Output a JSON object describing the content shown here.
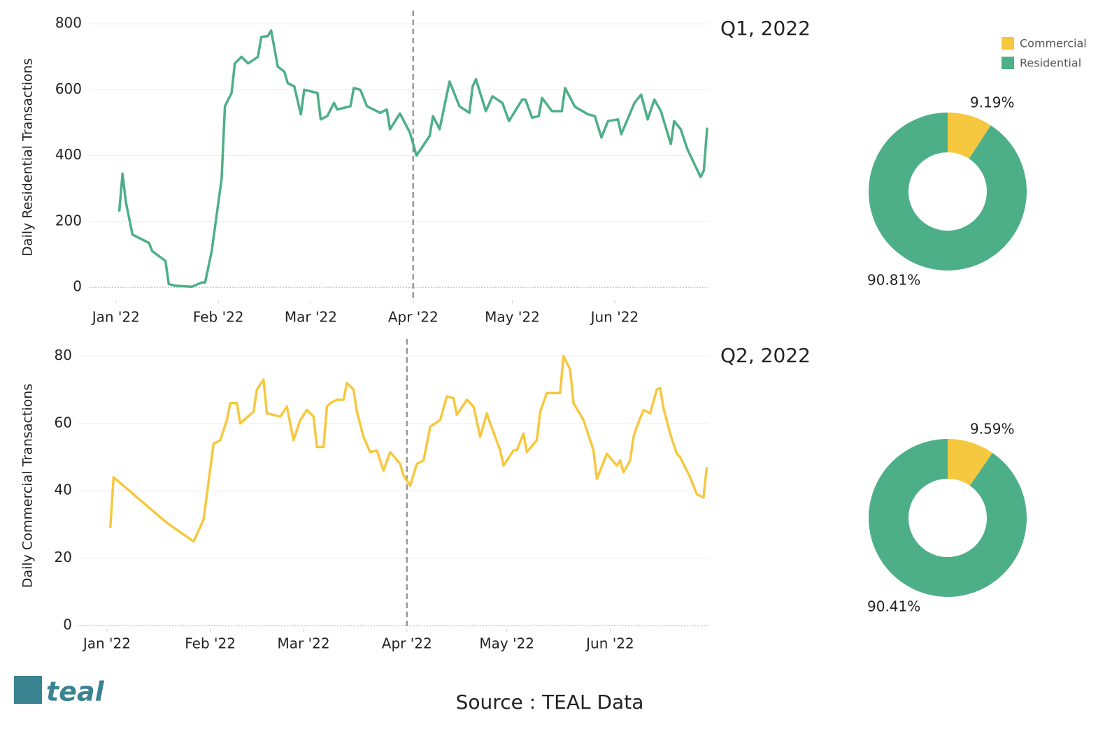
{
  "chart_data": [
    {
      "type": "line",
      "ylabel": "Daily Residential Transactions",
      "color": "#4daf88",
      "xlim": [
        -7,
        180.4
      ],
      "xticks": [
        {
          "value": 1,
          "label": "Jan '22"
        },
        {
          "value": 32,
          "label": "Feb '22"
        },
        {
          "value": 60,
          "label": "Mar '22"
        },
        {
          "value": 91,
          "label": "Apr '22"
        },
        {
          "value": 121,
          "label": "May '22"
        },
        {
          "value": 152,
          "label": "Jun '22"
        }
      ],
      "ylim": [
        -40,
        830
      ],
      "yticks": [
        0,
        200,
        400,
        600,
        800
      ],
      "grid": true,
      "vline": 91,
      "x": [
        2,
        3,
        4,
        6,
        11,
        12,
        16,
        17,
        19,
        24,
        27,
        28,
        30,
        33,
        34,
        36,
        37,
        39,
        41,
        44,
        45,
        47,
        48,
        50,
        52,
        53,
        55,
        57,
        58,
        62,
        63,
        65,
        67,
        68,
        72,
        73,
        75,
        77,
        81,
        83,
        84,
        87,
        90,
        92,
        94,
        96,
        97,
        99,
        102,
        105,
        108,
        109,
        110,
        113,
        115,
        118,
        120,
        124,
        125,
        127,
        129,
        130,
        133,
        136,
        137,
        140,
        144,
        146,
        148,
        150,
        153,
        154,
        158,
        160,
        162,
        164,
        166,
        169,
        170,
        172,
        174,
        178,
        179,
        180
      ],
      "values": [
        230,
        345,
        260,
        160,
        135,
        110,
        80,
        10,
        5,
        2,
        15,
        15,
        110,
        330,
        550,
        590,
        680,
        700,
        680,
        700,
        760,
        763,
        780,
        670,
        655,
        620,
        610,
        525,
        600,
        590,
        510,
        520,
        560,
        540,
        550,
        605,
        600,
        550,
        530,
        540,
        480,
        528,
        470,
        400,
        430,
        460,
        520,
        480,
        625,
        550,
        530,
        610,
        632,
        535,
        580,
        560,
        505,
        570,
        570,
        515,
        520,
        575,
        535,
        535,
        605,
        548,
        525,
        520,
        455,
        505,
        510,
        465,
        560,
        585,
        510,
        570,
        535,
        435,
        505,
        480,
        420,
        335,
        355,
        485
      ]
    },
    {
      "type": "line",
      "ylabel": "Daily Commercial Transactions",
      "color": "#f6c840",
      "xlim": [
        -8,
        181.5
      ],
      "xticks": [
        {
          "value": 1,
          "label": "Jan '22"
        },
        {
          "value": 32,
          "label": "Feb '22"
        },
        {
          "value": 60,
          "label": "Mar '22"
        },
        {
          "value": 91,
          "label": "Apr '22"
        },
        {
          "value": 121,
          "label": "May '22"
        },
        {
          "value": 152,
          "label": "Jun '22"
        }
      ],
      "ylim": [
        -1,
        84
      ],
      "yticks": [
        0,
        20,
        40,
        60,
        80
      ],
      "grid": true,
      "vline": 91,
      "x": [
        2,
        3,
        19,
        27,
        30,
        33,
        35,
        37,
        38,
        40,
        41,
        45,
        46,
        48,
        49,
        53,
        55,
        57,
        59,
        61,
        63,
        64,
        66,
        67,
        68,
        70,
        72,
        73,
        75,
        76,
        78,
        80,
        82,
        83,
        84,
        86,
        89,
        90,
        92,
        94,
        96,
        98,
        101,
        103,
        105,
        106,
        109,
        111,
        113,
        115,
        116,
        119,
        120,
        123,
        124,
        126,
        127,
        130,
        131,
        133,
        137,
        138,
        140,
        141,
        144,
        145,
        147,
        148,
        151,
        154,
        155,
        156,
        158,
        159,
        160,
        162,
        164,
        166,
        167,
        168,
        170,
        172,
        173,
        176,
        178,
        180,
        181
      ],
      "values": [
        29,
        44,
        30.5,
        25,
        31.5,
        54,
        55,
        61,
        66,
        66,
        60,
        63.5,
        70,
        73,
        63,
        62,
        65,
        55,
        61,
        64,
        62,
        53,
        53,
        65,
        66,
        67,
        67,
        72,
        70,
        63.5,
        56,
        51.5,
        52,
        49,
        46,
        51.5,
        48,
        44.5,
        41.5,
        48,
        49,
        59,
        61,
        68,
        67.5,
        62.5,
        67,
        65,
        56,
        63,
        60,
        52,
        47.5,
        52,
        52,
        57,
        51.5,
        55,
        63.5,
        69,
        69,
        80,
        76,
        66,
        61,
        58,
        52,
        43.5,
        51,
        47.5,
        49,
        45.5,
        49,
        56,
        59,
        64,
        63,
        70,
        70.5,
        64.5,
        57,
        51,
        50,
        44,
        39,
        38,
        47
      ]
    },
    {
      "type": "pie",
      "title": "Q1, 2022",
      "donut": true,
      "legend": "top-right",
      "categories": [
        "Commercial",
        "Residential"
      ],
      "colors": [
        "#f6c840",
        "#4daf88"
      ],
      "values": [
        9.19,
        90.81
      ],
      "value_labels": [
        "9.19%",
        "90.81%"
      ]
    },
    {
      "type": "pie",
      "title": "Q2, 2022",
      "donut": true,
      "legend": false,
      "categories": [
        "Commercial",
        "Residential"
      ],
      "colors": [
        "#f6c840",
        "#4daf88"
      ],
      "values": [
        9.59,
        90.41
      ],
      "value_labels": [
        "9.59%",
        "90.41%"
      ]
    }
  ],
  "footer": {
    "logo": "teal",
    "source": "Source : TEAL Data"
  }
}
